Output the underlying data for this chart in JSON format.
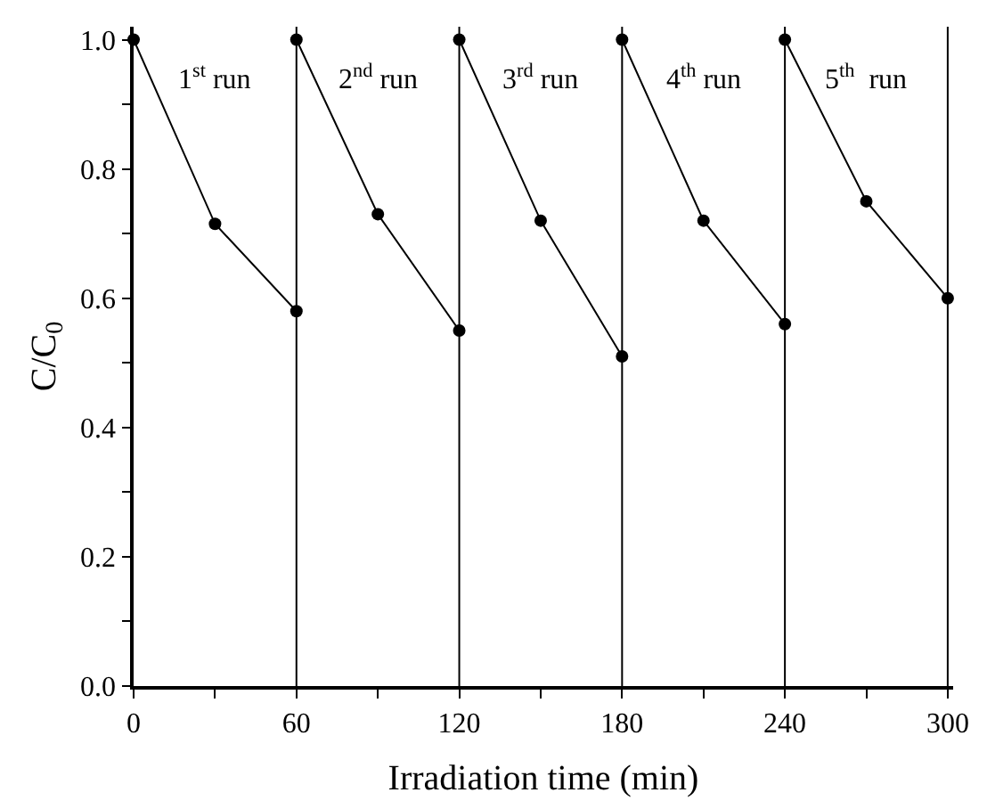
{
  "chart_data": {
    "type": "line",
    "xlabel": "Irradiation time (min)",
    "ylabel": "C/C$_{0}$",
    "series": [
      {
        "color": "#000000",
        "x": [
          0,
          30,
          60
        ],
        "values": [
          1.0,
          0.715,
          0.58
        ]
      },
      {
        "color": "#000000",
        "x": [
          60,
          90,
          120
        ],
        "values": [
          1.0,
          0.73,
          0.55
        ]
      },
      {
        "color": "#000000",
        "x": [
          120,
          150,
          180
        ],
        "values": [
          1.0,
          0.72,
          0.51
        ]
      },
      {
        "color": "#000000",
        "x": [
          180,
          210,
          240
        ],
        "values": [
          1.0,
          0.72,
          0.56
        ]
      },
      {
        "color": "#000000",
        "x": [
          240,
          270,
          300
        ],
        "values": [
          1.0,
          0.75,
          0.6
        ]
      }
    ],
    "xlim": [
      0,
      302
    ],
    "ylim": [
      0,
      1.02
    ],
    "xticks": [
      0,
      {
        "value": 30,
        "label": null
      },
      60,
      {
        "value": 90,
        "label": null
      },
      120,
      {
        "value": 150,
        "label": null
      },
      180,
      {
        "value": 210,
        "label": null
      },
      240,
      {
        "value": 270,
        "label": null
      },
      300
    ],
    "yticks": [
      "0.0",
      {
        "value": 0.1,
        "label": null
      },
      {
        "value": 0.2,
        "label": "0.2"
      },
      {
        "value": 0.3,
        "label": null
      },
      {
        "value": 0.4,
        "label": "0.4"
      },
      {
        "value": 0.5,
        "label": null
      },
      {
        "value": 0.6,
        "label": "0.6"
      },
      {
        "value": 0.7,
        "label": null
      },
      {
        "value": 0.8,
        "label": "0.8"
      },
      {
        "value": 0.9,
        "label": null
      },
      {
        "value": 1.0,
        "label": "1.0"
      }
    ],
    "ref_lines": [
      {
        "axis": "x",
        "value": 60,
        "color": "#000000"
      },
      {
        "axis": "x",
        "value": 120,
        "color": "#000000"
      },
      {
        "axis": "x",
        "value": 180,
        "color": "#000000"
      },
      {
        "axis": "x",
        "value": 240,
        "color": "#000000"
      },
      {
        "axis": "x",
        "value": 300,
        "color": "#000000"
      }
    ],
    "annotations": [
      "1$^{st}$ run",
      "2$^{nd}$ run",
      "3$^{rd}$ run",
      "4$^{th}$ run",
      "5$^{th}$  run"
    ],
    "marker": "circle",
    "line_style": "solid"
  }
}
